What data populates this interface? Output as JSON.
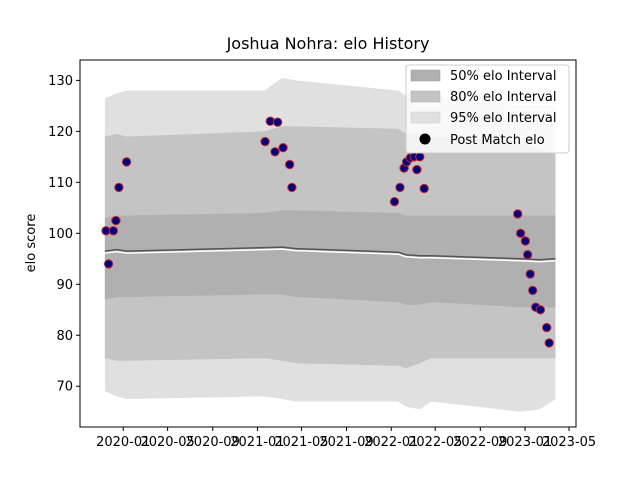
{
  "chart_data": {
    "type": "scatter",
    "title": "Joshua Nohra: elo History",
    "xlabel": "",
    "ylabel": "elo score",
    "x_tick_labels": [
      "2020-01",
      "2020-05",
      "2020-09",
      "2021-01",
      "2021-05",
      "2021-09",
      "2022-01",
      "2022-05",
      "2022-09",
      "2023-01",
      "2023-05"
    ],
    "x_tick_dates": [
      "2020-01-01",
      "2020-05-01",
      "2020-09-01",
      "2021-01-01",
      "2021-05-01",
      "2021-09-01",
      "2022-01-01",
      "2022-05-01",
      "2022-09-01",
      "2023-01-01",
      "2023-05-01"
    ],
    "y_ticks": [
      70,
      80,
      90,
      100,
      110,
      120,
      130
    ],
    "xlim": [
      "2019-09-05",
      "2023-05-20"
    ],
    "ylim": [
      62,
      134
    ],
    "legend_position": "top-right",
    "legend": {
      "band50": "50% elo Interval",
      "band80": "80% elo Interval",
      "band95": "95% elo Interval",
      "points": "Post Match elo"
    },
    "colors": {
      "band50": "#b0b0b0",
      "band80": "#c4c4c4",
      "band95": "#e0e0e0",
      "median_line": "#555555",
      "highlight_line": "#ffffff",
      "point_fill": "#00007f",
      "point_edge": "#d62728"
    },
    "bands": [
      {
        "date": "2019-11-12",
        "mean": 96.5,
        "lo50": 87.0,
        "hi50": 103.0,
        "lo80": 75.5,
        "hi80": 119.0,
        "lo95": 69.0,
        "hi95": 126.5
      },
      {
        "date": "2019-12-15",
        "mean": 96.8,
        "lo50": 87.5,
        "hi50": 103.5,
        "lo80": 75.0,
        "hi80": 119.5,
        "lo95": 68.0,
        "hi95": 127.5
      },
      {
        "date": "2020-01-10",
        "mean": 96.5,
        "lo50": 87.5,
        "hi50": 103.5,
        "lo80": 75.0,
        "hi80": 119.0,
        "lo95": 67.5,
        "hi95": 128.0
      },
      {
        "date": "2021-01-20",
        "mean": 97.2,
        "lo50": 88.0,
        "hi50": 104.0,
        "lo80": 75.5,
        "hi80": 120.0,
        "lo95": 68.0,
        "hi95": 128.0
      },
      {
        "date": "2021-03-10",
        "mean": 97.3,
        "lo50": 88.0,
        "hi50": 104.5,
        "lo80": 75.0,
        "hi80": 121.0,
        "lo95": 67.5,
        "hi95": 130.5
      },
      {
        "date": "2021-04-15",
        "mean": 97.0,
        "lo50": 87.5,
        "hi50": 104.5,
        "lo80": 74.5,
        "hi80": 121.0,
        "lo95": 67.0,
        "hi95": 130.0
      },
      {
        "date": "2022-01-20",
        "mean": 96.3,
        "lo50": 86.5,
        "hi50": 104.0,
        "lo80": 74.0,
        "hi80": 120.5,
        "lo95": 67.0,
        "hi95": 128.0
      },
      {
        "date": "2022-02-10",
        "mean": 95.8,
        "lo50": 86.0,
        "hi50": 103.5,
        "lo80": 73.5,
        "hi80": 119.5,
        "lo95": 66.0,
        "hi95": 127.0
      },
      {
        "date": "2022-03-20",
        "mean": 95.6,
        "lo50": 86.0,
        "hi50": 103.5,
        "lo80": 74.5,
        "hi80": 119.5,
        "lo95": 65.5,
        "hi95": 127.5
      },
      {
        "date": "2022-04-20",
        "mean": 95.6,
        "lo50": 86.5,
        "hi50": 103.5,
        "lo80": 75.5,
        "hi80": 119.0,
        "lo95": 67.0,
        "hi95": 127.0
      },
      {
        "date": "2022-12-20",
        "mean": 95.0,
        "lo50": 85.5,
        "hi50": 103.5,
        "lo80": 75.5,
        "hi80": 118.0,
        "lo95": 65.0,
        "hi95": 125.0
      },
      {
        "date": "2023-02-10",
        "mean": 94.8,
        "lo50": 85.5,
        "hi50": 103.5,
        "lo80": 75.5,
        "hi80": 116.5,
        "lo95": 65.5,
        "hi95": 125.0
      },
      {
        "date": "2023-03-25",
        "mean": 95.0,
        "lo50": 85.5,
        "hi50": 103.5,
        "lo80": 75.5,
        "hi80": 115.5,
        "lo95": 67.5,
        "hi95": 125.0
      }
    ],
    "points": [
      {
        "date": "2019-11-15",
        "y": 100.5
      },
      {
        "date": "2019-11-22",
        "y": 94.0
      },
      {
        "date": "2019-12-05",
        "y": 100.5
      },
      {
        "date": "2019-12-12",
        "y": 102.5
      },
      {
        "date": "2019-12-20",
        "y": 109.0
      },
      {
        "date": "2020-01-10",
        "y": 114.0
      },
      {
        "date": "2021-01-22",
        "y": 118.0
      },
      {
        "date": "2021-02-05",
        "y": 122.0
      },
      {
        "date": "2021-02-18",
        "y": 116.0
      },
      {
        "date": "2021-02-25",
        "y": 121.8
      },
      {
        "date": "2021-03-12",
        "y": 116.8
      },
      {
        "date": "2021-03-30",
        "y": 113.5
      },
      {
        "date": "2021-04-05",
        "y": 109.0
      },
      {
        "date": "2022-01-10",
        "y": 106.2
      },
      {
        "date": "2022-01-25",
        "y": 109.0
      },
      {
        "date": "2022-02-05",
        "y": 112.8
      },
      {
        "date": "2022-02-12",
        "y": 114.0
      },
      {
        "date": "2022-02-22",
        "y": 114.8
      },
      {
        "date": "2022-03-05",
        "y": 115.0
      },
      {
        "date": "2022-03-12",
        "y": 112.5
      },
      {
        "date": "2022-03-20",
        "y": 115.0
      },
      {
        "date": "2022-04-01",
        "y": 108.8
      },
      {
        "date": "2022-12-12",
        "y": 103.8
      },
      {
        "date": "2022-12-20",
        "y": 100.0
      },
      {
        "date": "2023-01-02",
        "y": 98.5
      },
      {
        "date": "2023-01-08",
        "y": 95.8
      },
      {
        "date": "2023-01-15",
        "y": 92.0
      },
      {
        "date": "2023-01-22",
        "y": 88.8
      },
      {
        "date": "2023-01-30",
        "y": 85.5
      },
      {
        "date": "2023-02-12",
        "y": 85.0
      },
      {
        "date": "2023-03-01",
        "y": 81.5
      },
      {
        "date": "2023-03-08",
        "y": 78.5
      }
    ]
  }
}
